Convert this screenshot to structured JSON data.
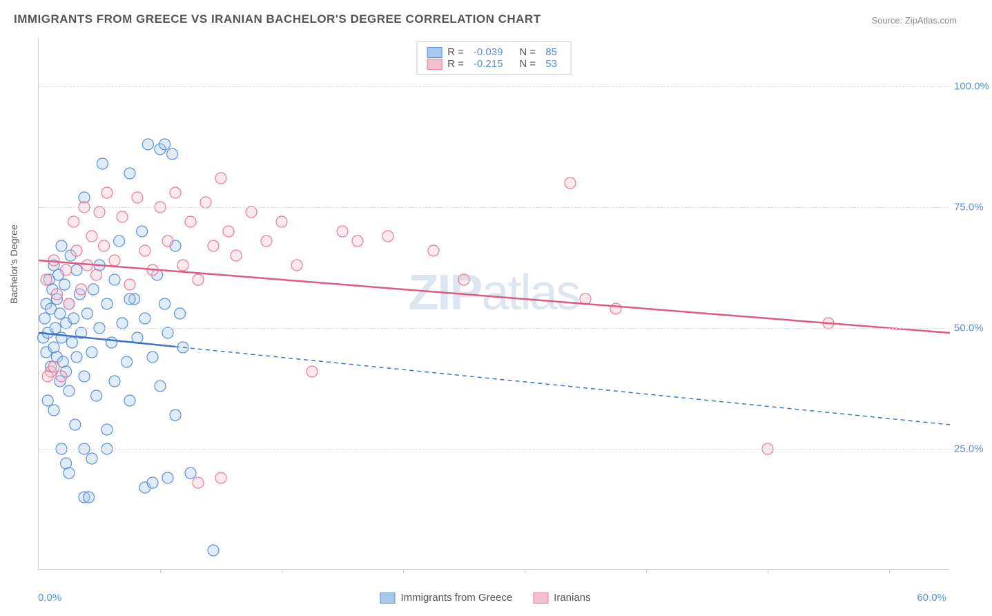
{
  "title": "IMMIGRANTS FROM GREECE VS IRANIAN BACHELOR'S DEGREE CORRELATION CHART",
  "source": "Source: ZipAtlas.com",
  "ylabel": "Bachelor's Degree",
  "watermark_bold": "ZIP",
  "watermark_light": "atlas",
  "chart": {
    "type": "scatter",
    "xlim": [
      0,
      60
    ],
    "ylim": [
      0,
      110
    ],
    "x_min_label": "0.0%",
    "x_max_label": "60.0%",
    "y_ticks": [
      25,
      50,
      75,
      100
    ],
    "y_tick_labels": [
      "25.0%",
      "50.0%",
      "75.0%",
      "100.0%"
    ],
    "x_tick_positions": [
      8,
      16,
      24,
      32,
      40,
      48,
      56
    ],
    "background_color": "#ffffff",
    "grid_color": "#dddddd",
    "axis_color": "#cccccc",
    "marker_radius": 8,
    "marker_stroke_width": 1.2,
    "marker_fill_opacity": 0.35,
    "trend_line_width": 2.5
  },
  "series": [
    {
      "key": "greece",
      "label": "Immigrants from Greece",
      "fill": "#a8c9ed",
      "stroke": "#5a8fd6",
      "line_color": "#3d73c4",
      "R": "-0.039",
      "N": "85",
      "trend": {
        "y_at_xmin": 49,
        "y_at_xmax": 30,
        "solid_until_x": 9
      },
      "points": [
        [
          0.3,
          48
        ],
        [
          0.4,
          52
        ],
        [
          0.5,
          45
        ],
        [
          0.5,
          55
        ],
        [
          0.6,
          49
        ],
        [
          0.7,
          60
        ],
        [
          0.8,
          42
        ],
        [
          0.8,
          54
        ],
        [
          0.9,
          58
        ],
        [
          1.0,
          46
        ],
        [
          1.0,
          63
        ],
        [
          1.1,
          50
        ],
        [
          1.2,
          44
        ],
        [
          1.2,
          56
        ],
        [
          1.3,
          61
        ],
        [
          1.4,
          39
        ],
        [
          1.4,
          53
        ],
        [
          1.5,
          48
        ],
        [
          1.5,
          67
        ],
        [
          1.6,
          43
        ],
        [
          1.7,
          59
        ],
        [
          1.8,
          51
        ],
        [
          1.8,
          41
        ],
        [
          2.0,
          55
        ],
        [
          2.0,
          37
        ],
        [
          2.1,
          65
        ],
        [
          2.2,
          47
        ],
        [
          2.3,
          52
        ],
        [
          2.4,
          30
        ],
        [
          2.5,
          62
        ],
        [
          2.5,
          44
        ],
        [
          2.7,
          57
        ],
        [
          2.8,
          49
        ],
        [
          3.0,
          77
        ],
        [
          3.0,
          40
        ],
        [
          3.0,
          15
        ],
        [
          3.2,
          53
        ],
        [
          3.3,
          15
        ],
        [
          3.5,
          45
        ],
        [
          3.6,
          58
        ],
        [
          3.8,
          36
        ],
        [
          4.0,
          63
        ],
        [
          4.0,
          50
        ],
        [
          4.2,
          84
        ],
        [
          4.5,
          29
        ],
        [
          4.5,
          55
        ],
        [
          4.8,
          47
        ],
        [
          5.0,
          60
        ],
        [
          5.0,
          39
        ],
        [
          5.3,
          68
        ],
        [
          5.5,
          51
        ],
        [
          5.8,
          43
        ],
        [
          6.0,
          82
        ],
        [
          6.0,
          35
        ],
        [
          6.3,
          56
        ],
        [
          6.5,
          48
        ],
        [
          6.8,
          70
        ],
        [
          7.0,
          52
        ],
        [
          7.0,
          17
        ],
        [
          7.2,
          88
        ],
        [
          7.5,
          44
        ],
        [
          7.8,
          61
        ],
        [
          8.0,
          87
        ],
        [
          8.0,
          38
        ],
        [
          8.3,
          55
        ],
        [
          8.3,
          88
        ],
        [
          8.5,
          49
        ],
        [
          8.8,
          86
        ],
        [
          9.0,
          67
        ],
        [
          9.0,
          32
        ],
        [
          9.3,
          53
        ],
        [
          9.5,
          46
        ],
        [
          1.5,
          25
        ],
        [
          1.8,
          22
        ],
        [
          3.5,
          23
        ],
        [
          4.5,
          25
        ],
        [
          0.6,
          35
        ],
        [
          1.0,
          33
        ],
        [
          2.0,
          20
        ],
        [
          3.0,
          25
        ],
        [
          11.5,
          4
        ],
        [
          7.5,
          18
        ],
        [
          8.5,
          19
        ],
        [
          10.0,
          20
        ],
        [
          6.0,
          56
        ]
      ]
    },
    {
      "key": "iranians",
      "label": "Iranians",
      "fill": "#f4c0cd",
      "stroke": "#e77a9a",
      "line_color": "#e05a80",
      "R": "-0.215",
      "N": "53",
      "trend": {
        "y_at_xmin": 64,
        "y_at_xmax": 49,
        "solid_until_x": 60
      },
      "points": [
        [
          0.5,
          60
        ],
        [
          0.8,
          41
        ],
        [
          1.0,
          64
        ],
        [
          1.2,
          57
        ],
        [
          1.5,
          40
        ],
        [
          1.8,
          62
        ],
        [
          2.0,
          55
        ],
        [
          2.3,
          72
        ],
        [
          2.5,
          66
        ],
        [
          2.8,
          58
        ],
        [
          3.0,
          75
        ],
        [
          3.2,
          63
        ],
        [
          3.5,
          69
        ],
        [
          3.8,
          61
        ],
        [
          4.0,
          74
        ],
        [
          4.3,
          67
        ],
        [
          4.5,
          78
        ],
        [
          5.0,
          64
        ],
        [
          5.5,
          73
        ],
        [
          6.0,
          59
        ],
        [
          6.5,
          77
        ],
        [
          7.0,
          66
        ],
        [
          7.5,
          62
        ],
        [
          8.0,
          75
        ],
        [
          8.5,
          68
        ],
        [
          9.0,
          78
        ],
        [
          9.5,
          63
        ],
        [
          10.0,
          72
        ],
        [
          10.5,
          60
        ],
        [
          11.0,
          76
        ],
        [
          11.5,
          67
        ],
        [
          12.0,
          81
        ],
        [
          12.5,
          70
        ],
        [
          13.0,
          65
        ],
        [
          14.0,
          74
        ],
        [
          15.0,
          68
        ],
        [
          16.0,
          72
        ],
        [
          17.0,
          63
        ],
        [
          18.0,
          41
        ],
        [
          20.0,
          70
        ],
        [
          21.0,
          68
        ],
        [
          23.0,
          69
        ],
        [
          26.0,
          66
        ],
        [
          28.0,
          60
        ],
        [
          35.0,
          80
        ],
        [
          36.0,
          56
        ],
        [
          38.0,
          54
        ],
        [
          48.0,
          25
        ],
        [
          52.0,
          51
        ],
        [
          10.5,
          18
        ],
        [
          12.0,
          19
        ],
        [
          1.0,
          42
        ],
        [
          0.6,
          40
        ]
      ]
    }
  ]
}
